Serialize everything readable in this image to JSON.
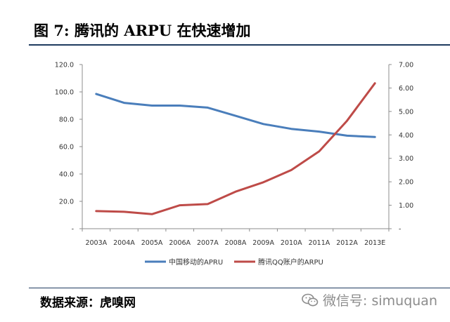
{
  "header": {
    "title": "图 7: 腾讯的 ARPU 在快速增加"
  },
  "footer": {
    "source": "数据来源：虎嗅网",
    "watermark": "微信号: simuquan",
    "watermark_icon": "wechat-icon"
  },
  "colors": {
    "series_mobile": "#4a7ebb",
    "series_tencent": "#be4b48",
    "axis": "#8c8c8c",
    "text": "#333333"
  },
  "chart_data": {
    "type": "line",
    "title": "",
    "categories": [
      "2003A",
      "2004A",
      "2005A",
      "2006A",
      "2007A",
      "2008A",
      "2009A",
      "2010A",
      "2011A",
      "2012A",
      "2013E"
    ],
    "series": [
      {
        "name": "中国移动的APRU",
        "axis": "left",
        "values": [
          98.5,
          92.0,
          90.0,
          90.0,
          88.5,
          82.5,
          76.5,
          73.0,
          71.0,
          68.0,
          67.0
        ]
      },
      {
        "name": "腾讯QQ账户的ARPU",
        "axis": "right",
        "values": [
          0.75,
          0.72,
          0.62,
          1.0,
          1.05,
          1.58,
          1.98,
          2.5,
          3.3,
          4.6,
          6.2
        ]
      }
    ],
    "y_left": {
      "ylim": [
        0,
        120
      ],
      "ticks": [
        120,
        100,
        80,
        60,
        40,
        20,
        0
      ],
      "tick_labels": [
        "120.0",
        "100.0",
        "80.0",
        "60.0",
        "40.0",
        "20.0",
        "-"
      ]
    },
    "y_right": {
      "ylim": [
        0,
        7
      ],
      "ticks": [
        7,
        6,
        5,
        4,
        3,
        2,
        1,
        0
      ],
      "tick_labels": [
        "7.00",
        "6.00",
        "5.00",
        "4.00",
        "3.00",
        "2.00",
        "1.00",
        "-"
      ]
    },
    "xlabel": "",
    "ylabel": "",
    "grid": false,
    "legend": "bottom-center"
  }
}
